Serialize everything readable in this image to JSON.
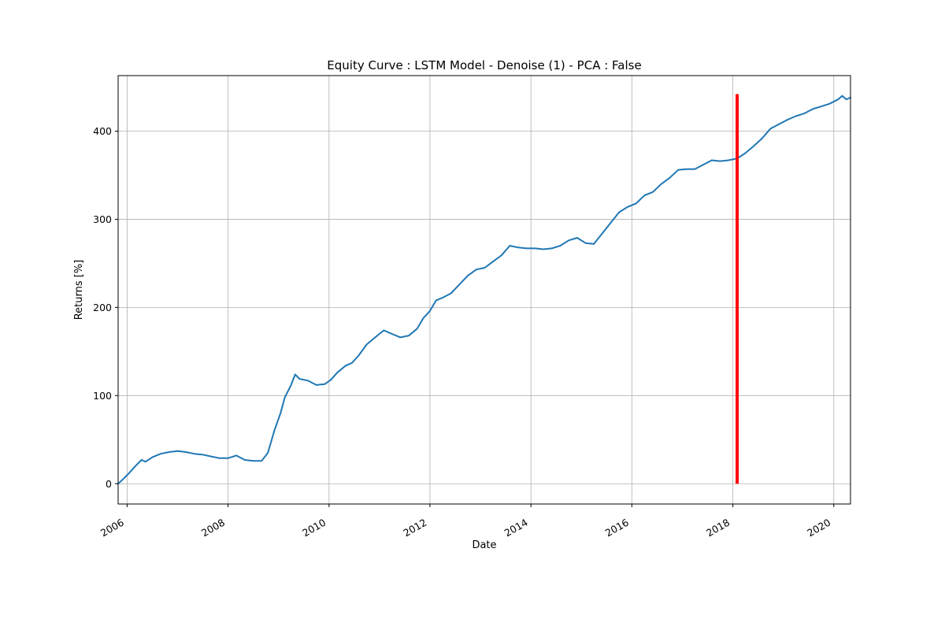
{
  "colors": {
    "line": "#1f77b4",
    "marker": "#ff0000",
    "grid": "#b0b0b0",
    "axes": "#000000",
    "background": "#ffffff"
  },
  "chart_data": {
    "type": "line",
    "title": "Equity Curve : LSTM Model - Denoise (1) - PCA : False",
    "xlabel": "Date",
    "ylabel": "Returns [%]",
    "xlim": [
      "2005-10-28",
      "2020-05-01"
    ],
    "ylim": [
      -23,
      463
    ],
    "x_ticks": [
      {
        "date": "2006-01-01",
        "label": "2006"
      },
      {
        "date": "2008-01-01",
        "label": "2008"
      },
      {
        "date": "2010-01-01",
        "label": "2010"
      },
      {
        "date": "2012-01-01",
        "label": "2012"
      },
      {
        "date": "2014-01-01",
        "label": "2014"
      },
      {
        "date": "2016-01-01",
        "label": "2016"
      },
      {
        "date": "2018-01-01",
        "label": "2018"
      },
      {
        "date": "2020-01-01",
        "label": "2020"
      }
    ],
    "y_ticks": [
      0,
      100,
      200,
      300,
      400
    ],
    "grid": true,
    "series": [
      {
        "points": [
          [
            "2005-10-28",
            0
          ],
          [
            "2005-12-01",
            5
          ],
          [
            "2006-01-15",
            12
          ],
          [
            "2006-03-01",
            20
          ],
          [
            "2006-04-15",
            27
          ],
          [
            "2006-05-15",
            25
          ],
          [
            "2006-07-01",
            30
          ],
          [
            "2006-09-01",
            34
          ],
          [
            "2006-11-01",
            36
          ],
          [
            "2007-01-01",
            37
          ],
          [
            "2007-03-01",
            36
          ],
          [
            "2007-05-01",
            34
          ],
          [
            "2007-07-01",
            33
          ],
          [
            "2007-09-01",
            31
          ],
          [
            "2007-11-01",
            29
          ],
          [
            "2008-01-01",
            29
          ],
          [
            "2008-03-01",
            32
          ],
          [
            "2008-05-01",
            27
          ],
          [
            "2008-07-01",
            26
          ],
          [
            "2008-09-01",
            26
          ],
          [
            "2008-10-15",
            35
          ],
          [
            "2008-12-01",
            60
          ],
          [
            "2009-01-15",
            80
          ],
          [
            "2009-02-15",
            98
          ],
          [
            "2009-04-01",
            112
          ],
          [
            "2009-05-01",
            124
          ],
          [
            "2009-06-01",
            119
          ],
          [
            "2009-08-01",
            117
          ],
          [
            "2009-10-01",
            112
          ],
          [
            "2009-12-01",
            113
          ],
          [
            "2010-01-15",
            118
          ],
          [
            "2010-03-01",
            126
          ],
          [
            "2010-05-01",
            134
          ],
          [
            "2010-06-15",
            137
          ],
          [
            "2010-08-01",
            145
          ],
          [
            "2010-10-01",
            158
          ],
          [
            "2010-12-01",
            166
          ],
          [
            "2011-02-01",
            174
          ],
          [
            "2011-04-01",
            170
          ],
          [
            "2011-06-01",
            166
          ],
          [
            "2011-08-01",
            168
          ],
          [
            "2011-10-01",
            176
          ],
          [
            "2011-11-15",
            188
          ],
          [
            "2012-01-01",
            196
          ],
          [
            "2012-02-15",
            208
          ],
          [
            "2012-04-01",
            211
          ],
          [
            "2012-06-01",
            216
          ],
          [
            "2012-08-01",
            226
          ],
          [
            "2012-10-01",
            236
          ],
          [
            "2012-12-01",
            243
          ],
          [
            "2013-02-01",
            245
          ],
          [
            "2013-04-01",
            252
          ],
          [
            "2013-06-01",
            259
          ],
          [
            "2013-08-01",
            270
          ],
          [
            "2013-10-01",
            268
          ],
          [
            "2013-12-01",
            267
          ],
          [
            "2014-02-01",
            267
          ],
          [
            "2014-04-01",
            266
          ],
          [
            "2014-06-01",
            267
          ],
          [
            "2014-08-01",
            270
          ],
          [
            "2014-10-01",
            276
          ],
          [
            "2014-12-01",
            279
          ],
          [
            "2015-02-01",
            273
          ],
          [
            "2015-04-01",
            272
          ],
          [
            "2015-06-01",
            284
          ],
          [
            "2015-08-01",
            296
          ],
          [
            "2015-10-01",
            308
          ],
          [
            "2015-12-01",
            314
          ],
          [
            "2016-02-01",
            318
          ],
          [
            "2016-04-01",
            327
          ],
          [
            "2016-06-01",
            331
          ],
          [
            "2016-08-01",
            340
          ],
          [
            "2016-10-01",
            347
          ],
          [
            "2016-12-01",
            356
          ],
          [
            "2017-02-01",
            357
          ],
          [
            "2017-04-01",
            357
          ],
          [
            "2017-06-01",
            362
          ],
          [
            "2017-08-01",
            367
          ],
          [
            "2017-10-01",
            366
          ],
          [
            "2017-12-01",
            367
          ],
          [
            "2018-02-01",
            369
          ],
          [
            "2018-04-01",
            375
          ],
          [
            "2018-06-01",
            383
          ],
          [
            "2018-08-01",
            392
          ],
          [
            "2018-10-01",
            403
          ],
          [
            "2018-12-01",
            408
          ],
          [
            "2019-02-01",
            413
          ],
          [
            "2019-04-01",
            417
          ],
          [
            "2019-06-01",
            420
          ],
          [
            "2019-08-01",
            425
          ],
          [
            "2019-10-01",
            428
          ],
          [
            "2019-12-01",
            431
          ],
          [
            "2020-02-01",
            436
          ],
          [
            "2020-03-01",
            440
          ],
          [
            "2020-04-01",
            436
          ],
          [
            "2020-05-01",
            438
          ]
        ]
      }
    ],
    "vertical_line": {
      "x": "2018-02-01",
      "y_range": [
        0,
        442
      ]
    }
  }
}
